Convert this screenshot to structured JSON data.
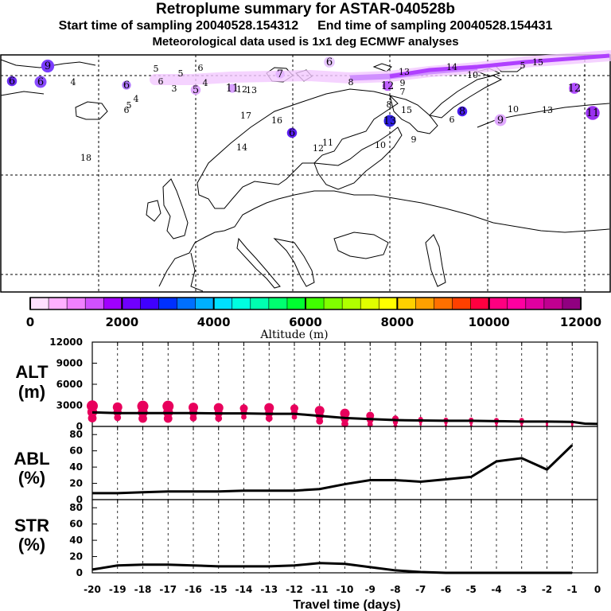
{
  "header": {
    "title": "Retroplume summary for ASTAR-040528b",
    "start_label": "Start time of sampling 20040528.154312",
    "end_label": "End time of sampling 20040528.154431",
    "met_label": "Meteorological data used is 1x1 deg ECMWF analyses"
  },
  "colorbar": {
    "label": "Altitude (m)",
    "ticks": [
      "0",
      "2000",
      "4000",
      "6000",
      "8000",
      "10000",
      "12000"
    ],
    "colors": [
      "#ffe0ff",
      "#ffb0ff",
      "#f080ff",
      "#d050ff",
      "#a000ff",
      "#7000ff",
      "#4000ff",
      "#0030ff",
      "#0070ff",
      "#00b0ff",
      "#00e0ff",
      "#00ffe0",
      "#00ffb0",
      "#00ff70",
      "#00ff30",
      "#40ff00",
      "#80ff00",
      "#b0ff00",
      "#e0ff00",
      "#ffff00",
      "#ffd000",
      "#ffa000",
      "#ff7000",
      "#ff4000",
      "#ff0040",
      "#ff0080",
      "#ff00a0",
      "#e000a0",
      "#c00090",
      "#900080"
    ]
  },
  "map": {
    "labels": [
      {
        "t": "9",
        "c": "#7a3cff",
        "s": 13
      },
      {
        "t": "6",
        "c": "#6a2cf0",
        "s": 10
      },
      {
        "t": "6",
        "c": "#8a4cff",
        "s": 12
      },
      {
        "t": "4",
        "c": "#000",
        "s": 0
      },
      {
        "t": "5",
        "c": "#000",
        "s": 0
      },
      {
        "t": "6",
        "c": "#e4b4ff",
        "s": 0
      },
      {
        "t": "5",
        "c": "#eeccff",
        "s": 0
      },
      {
        "t": "6",
        "c": "#eeccff",
        "s": 0
      },
      {
        "t": "3",
        "c": "#e8c8ff",
        "s": 0
      },
      {
        "t": "4",
        "c": "#e8c8ff",
        "s": 0
      },
      {
        "t": "5",
        "c": "#e0a8ff",
        "s": 10
      },
      {
        "t": "11",
        "c": "#d8a0ff",
        "s": 9
      },
      {
        "t": "12",
        "c": "#e4b4ff",
        "s": 0
      },
      {
        "t": "13",
        "c": "#e4b4ff",
        "s": 0
      },
      {
        "t": "7",
        "c": "#e4b4ff",
        "s": 9
      },
      {
        "t": "6",
        "c": "#e8c8ff",
        "s": 11
      },
      {
        "t": "8",
        "c": "#000",
        "s": 0
      },
      {
        "t": "12",
        "c": "#c060ff",
        "s": 10
      },
      {
        "t": "13",
        "c": "#e4b4ff",
        "s": 0
      },
      {
        "t": "9",
        "c": "#c060ff",
        "s": 0
      },
      {
        "t": "14",
        "c": "#c060ff",
        "s": 0
      },
      {
        "t": "10",
        "c": "#c060ff",
        "s": 0
      },
      {
        "t": "15",
        "c": "#c060ff",
        "s": 0
      },
      {
        "t": "6",
        "c": "#b078ff",
        "s": 9
      },
      {
        "t": "5",
        "c": "#000",
        "s": 0
      },
      {
        "t": "4",
        "c": "#000",
        "s": 0
      },
      {
        "t": "6",
        "c": "#8a4cff",
        "s": 0
      },
      {
        "t": "17",
        "c": "#7a3cff",
        "s": 0
      },
      {
        "t": "16",
        "c": "#6a2cf0",
        "s": 0
      },
      {
        "t": "6",
        "c": "#5a1ef0",
        "s": 10
      },
      {
        "t": "14",
        "c": "#7a3cff",
        "s": 0
      },
      {
        "t": "12",
        "c": "#7a3cff",
        "s": 0
      },
      {
        "t": "11",
        "c": "#7a3cff",
        "s": 0
      },
      {
        "t": "18",
        "c": "#000",
        "s": 0
      },
      {
        "t": "8",
        "c": "#b050ff",
        "s": 0
      },
      {
        "t": "15",
        "c": "#7a3cff",
        "s": 0
      },
      {
        "t": "13",
        "c": "#3020e0",
        "s": 12
      },
      {
        "t": "10",
        "c": "#000",
        "s": 0
      },
      {
        "t": "9",
        "c": "#000",
        "s": 0
      },
      {
        "t": "6",
        "c": "#000",
        "s": 0
      },
      {
        "t": "8",
        "c": "#4a1ef0",
        "s": 10
      },
      {
        "t": "10",
        "c": "#000",
        "s": 0
      },
      {
        "t": "9",
        "c": "#e0a8ff",
        "s": 12
      },
      {
        "t": "13",
        "c": "#5a2cf0",
        "s": 0
      },
      {
        "t": "12",
        "c": "#b050ff",
        "s": 11
      },
      {
        "t": "5",
        "c": "#b050ff",
        "s": 0
      },
      {
        "t": "11",
        "c": "#9a30f0",
        "s": 14
      },
      {
        "t": "7",
        "c": "#000",
        "s": 0
      }
    ]
  },
  "chart_data": [
    {
      "type": "scatter",
      "panel": "ALT",
      "ylabel": "ALT (m)",
      "xlabel": "Travel time (days)",
      "xlim": [
        -20,
        0
      ],
      "ylim": [
        0,
        12000
      ],
      "yticks": [
        "12000",
        "9000",
        "6000",
        "3000",
        "0"
      ],
      "xticks": [
        "-20",
        "-19",
        "-18",
        "-17",
        "-16",
        "-15",
        "-14",
        "-13",
        "-12",
        "-11",
        "-10",
        "-9",
        "-8",
        "-7",
        "-6",
        "-5",
        "-4",
        "-3",
        "-2",
        "-1",
        "0"
      ],
      "mean_line": {
        "x": [
          -20,
          -19,
          -18,
          -17,
          -16,
          -15,
          -14,
          -13,
          -12,
          -11,
          -10,
          -9,
          -8,
          -7,
          -6,
          -5,
          -4,
          -3,
          -2,
          -1,
          -0.5,
          0
        ],
        "y": [
          2000,
          1900,
          1900,
          1900,
          1900,
          1850,
          1850,
          1800,
          1800,
          1500,
          1200,
          1050,
          900,
          850,
          800,
          800,
          750,
          700,
          700,
          650,
          400,
          350
        ]
      },
      "clusters": {
        "x": [
          -20,
          -19,
          -18,
          -17,
          -16,
          -15,
          -14,
          -13,
          -12,
          -11,
          -10,
          -9,
          -8,
          -7,
          -6,
          -5,
          -4,
          -3,
          -2,
          -1
        ],
        "y": [
          2050,
          2000,
          2000,
          2000,
          1950,
          1900,
          1950,
          1900,
          1950,
          1500,
          1100,
          900,
          600,
          650,
          550,
          550,
          500,
          500,
          400,
          350
        ],
        "size": [
          7,
          6,
          7,
          7,
          6,
          6,
          5,
          6,
          5,
          6,
          6,
          5,
          4,
          3,
          3,
          3,
          3,
          3,
          2,
          2
        ]
      },
      "marker_color": "#e8005c"
    },
    {
      "type": "line",
      "panel": "ABL",
      "ylabel": "ABL (%)",
      "ylim": [
        0,
        90
      ],
      "yticks": [
        "80",
        "60",
        "40",
        "20",
        "0"
      ],
      "x": [
        -20,
        -19,
        -18,
        -17,
        -16,
        -15,
        -14,
        -13,
        -12,
        -11,
        -10,
        -9,
        -8,
        -7,
        -6,
        -5,
        -4,
        -3,
        -2,
        -1
      ],
      "values": [
        8,
        8,
        9,
        10,
        10,
        10,
        11,
        11,
        11,
        13,
        19,
        24,
        24,
        22,
        25,
        28,
        47,
        51,
        37,
        67
      ]
    },
    {
      "type": "line",
      "panel": "STR",
      "ylabel": "STR (%)",
      "ylim": [
        0,
        90
      ],
      "yticks": [
        "80",
        "60",
        "40",
        "20",
        "0"
      ],
      "x": [
        -20,
        -19,
        -18,
        -17,
        -16,
        -15,
        -14,
        -13,
        -12,
        -11,
        -10,
        -9,
        -8,
        -7,
        -6,
        -5,
        -4,
        -3,
        -2,
        -1
      ],
      "values": [
        4,
        9,
        10,
        10,
        9,
        8,
        8,
        8,
        9,
        12,
        11,
        7,
        3,
        1,
        0,
        0,
        0,
        0,
        0,
        0
      ]
    }
  ]
}
